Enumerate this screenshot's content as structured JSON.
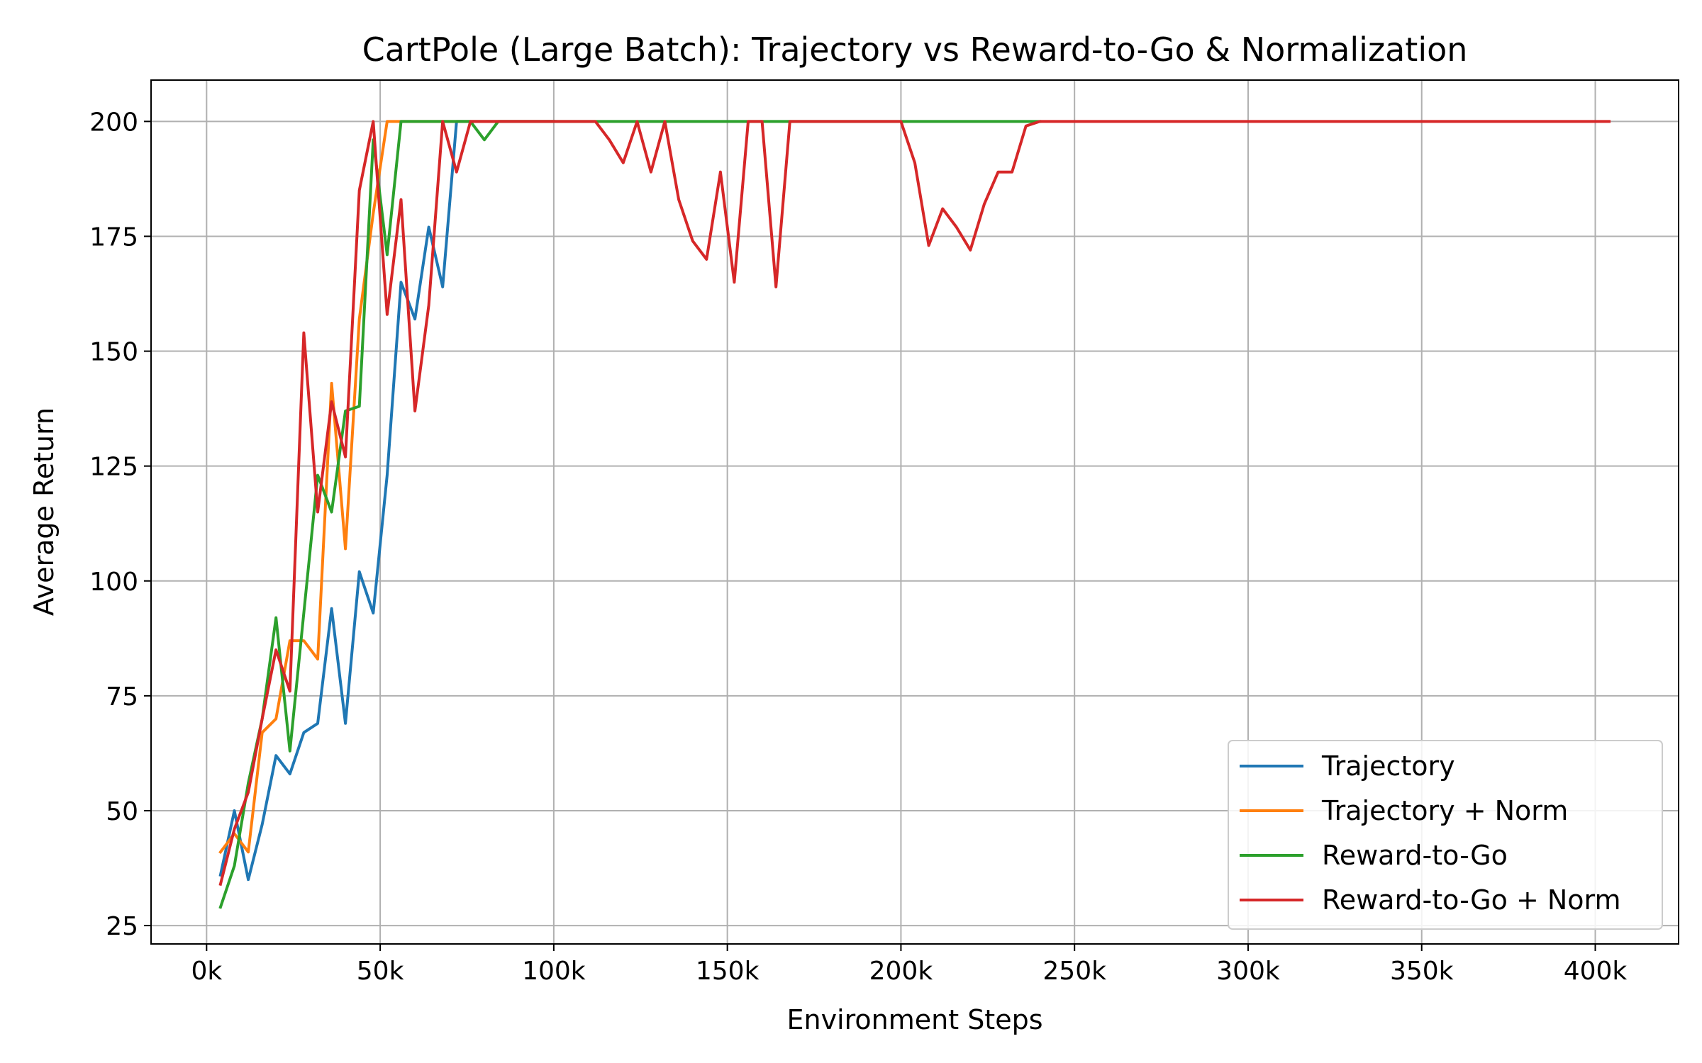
{
  "chart_data": {
    "type": "line",
    "title": "CartPole (Large Batch): Trajectory vs Reward-to-Go & Normalization",
    "xlabel": "Environment Steps",
    "ylabel": "Average Return",
    "xlim": [
      -16000,
      424000
    ],
    "ylim": [
      21,
      209
    ],
    "xticks": [
      0,
      50000,
      100000,
      150000,
      200000,
      250000,
      300000,
      350000,
      400000
    ],
    "xtick_labels": [
      "0k",
      "50k",
      "100k",
      "150k",
      "200k",
      "250k",
      "300k",
      "350k",
      "400k"
    ],
    "yticks": [
      25,
      50,
      75,
      100,
      125,
      150,
      175,
      200
    ],
    "ytick_labels": [
      "25",
      "50",
      "75",
      "100",
      "125",
      "150",
      "175",
      "200"
    ],
    "grid": true,
    "legend_position": "lower-right",
    "series": [
      {
        "name": "Trajectory",
        "color": "#1f77b4",
        "x": [
          4000,
          8000,
          12000,
          16000,
          20000,
          24000,
          28000,
          32000,
          36000,
          40000,
          44000,
          48000,
          52000,
          56000,
          60000,
          64000,
          68000,
          72000,
          76000,
          80000,
          84000,
          88000,
          92000,
          96000,
          100000
        ],
        "y": [
          36,
          50,
          35,
          47,
          62,
          58,
          67,
          69,
          94,
          69,
          102,
          93,
          123,
          165,
          157,
          177,
          164,
          200,
          200,
          200,
          200,
          200,
          200,
          200,
          200
        ]
      },
      {
        "name": "Trajectory + Norm",
        "color": "#ff7f0e",
        "x": [
          4000,
          8000,
          12000,
          16000,
          20000,
          24000,
          28000,
          32000,
          36000,
          40000,
          44000,
          48000,
          52000,
          56000,
          60000,
          64000,
          68000,
          72000,
          76000,
          80000,
          84000,
          88000,
          92000,
          96000,
          100000
        ],
        "y": [
          41,
          45,
          41,
          67,
          70,
          87,
          87,
          83,
          143,
          107,
          157,
          180,
          200,
          200,
          200,
          200,
          200,
          200,
          200,
          200,
          200,
          200,
          200,
          200,
          200
        ]
      },
      {
        "name": "Reward-to-Go",
        "color": "#2ca02c",
        "x": [
          4000,
          8000,
          12000,
          16000,
          20000,
          24000,
          28000,
          32000,
          36000,
          40000,
          44000,
          48000,
          52000,
          56000,
          60000,
          64000,
          68000,
          72000,
          76000,
          80000,
          84000,
          88000,
          92000,
          96000,
          100000,
          110000,
          120000,
          130000,
          140000,
          150000,
          160000,
          170000,
          180000,
          190000,
          200000,
          210000,
          220000,
          230000,
          240000
        ],
        "y": [
          29,
          38,
          56,
          70,
          92,
          63,
          93,
          123,
          115,
          137,
          138,
          196,
          171,
          200,
          200,
          200,
          200,
          200,
          200,
          196,
          200,
          200,
          200,
          200,
          200,
          200,
          200,
          200,
          200,
          200,
          200,
          200,
          200,
          200,
          200,
          200,
          200,
          200,
          200
        ]
      },
      {
        "name": "Reward-to-Go + Norm",
        "color": "#d62728",
        "x": [
          4000,
          8000,
          12000,
          16000,
          20000,
          24000,
          28000,
          32000,
          36000,
          40000,
          44000,
          48000,
          52000,
          56000,
          60000,
          64000,
          68000,
          72000,
          76000,
          80000,
          84000,
          88000,
          92000,
          96000,
          100000,
          104000,
          108000,
          112000,
          116000,
          120000,
          124000,
          128000,
          132000,
          136000,
          140000,
          144000,
          148000,
          152000,
          156000,
          160000,
          164000,
          168000,
          172000,
          176000,
          180000,
          184000,
          188000,
          192000,
          196000,
          200000,
          204000,
          208000,
          212000,
          216000,
          220000,
          224000,
          228000,
          232000,
          236000,
          240000,
          244000,
          248000,
          252000,
          260000,
          280000,
          300000,
          320000,
          340000,
          360000,
          380000,
          400000,
          404000
        ],
        "y": [
          34,
          46,
          54,
          70,
          85,
          76,
          154,
          115,
          139,
          127,
          185,
          200,
          158,
          183,
          137,
          160,
          200,
          189,
          200,
          200,
          200,
          200,
          200,
          200,
          200,
          200,
          200,
          200,
          196,
          191,
          200,
          189,
          200,
          183,
          174,
          170,
          189,
          165,
          200,
          200,
          164,
          200,
          200,
          200,
          200,
          200,
          200,
          200,
          200,
          200,
          191,
          173,
          181,
          177,
          172,
          182,
          189,
          189,
          199,
          200,
          200,
          200,
          200,
          200,
          200,
          200,
          200,
          200,
          200,
          200,
          200,
          200
        ]
      }
    ]
  }
}
